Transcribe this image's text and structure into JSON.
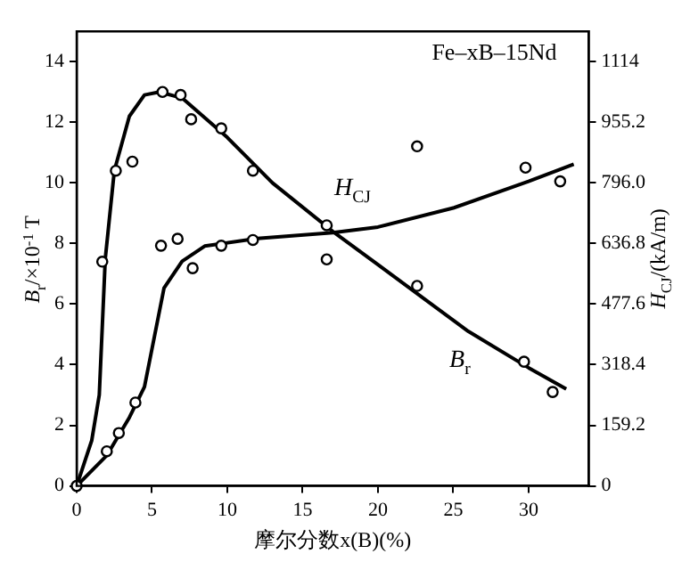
{
  "chart_data": {
    "type": "line",
    "title": "Fe–xB–15Nd",
    "xlabel": "摩尔分数x(B)(%)",
    "ylabel": "B$_{r}$/×10$^{-1}$ T",
    "y2label": "H$_{CJ}$/(kA/m)",
    "xlim": [
      0,
      34
    ],
    "xticks": [
      0,
      5,
      10,
      15,
      20,
      25,
      30
    ],
    "ylim": [
      0,
      15
    ],
    "yticks": [
      0,
      2,
      4,
      6,
      8,
      10,
      12,
      14
    ],
    "y2lim": [
      0,
      1194
    ],
    "y2ticks": [
      0,
      159.2,
      318.4,
      477.6,
      {
        "value": 636.8,
        "label": "636.8"
      },
      {
        "value": 796,
        "label": "796.0"
      },
      955.2,
      1114
    ],
    "grid": false,
    "legend": false,
    "series": [
      {
        "name": "B$_{r}$",
        "marker": "none",
        "color": "#000000",
        "x": [
          0,
          1,
          1.5,
          1.9,
          2.5,
          3.5,
          4.5,
          5.5,
          7,
          10,
          13,
          17,
          20,
          23,
          26,
          30,
          32.5
        ],
        "values": [
          0,
          1.5,
          3,
          7.5,
          10.4,
          12.2,
          12.9,
          13,
          12.8,
          11.5,
          10,
          8.4,
          7.3,
          6.2,
          5.1,
          3.9,
          3.2
        ]
      },
      {
        "type": "scatter",
        "marker": "circle",
        "color": "#000000",
        "x": [
          0,
          1.7,
          2.6,
          3.7,
          5.7,
          6.9,
          7.6,
          9.6,
          11.7,
          16.6,
          22.6,
          29.7,
          31.6
        ],
        "values": [
          0,
          7.4,
          10.4,
          10.7,
          13,
          12.9,
          12.1,
          11.8,
          10.4,
          8.6,
          6.6,
          4.1,
          3.1
        ]
      },
      {
        "name": "H$_{CJ}$",
        "marker": "none",
        "color": "#000000",
        "axis": "y2",
        "x": [
          0,
          2,
          3.5,
          4.5,
          5.2,
          5.8,
          7,
          8.5,
          12,
          17,
          20,
          25,
          30,
          33
        ],
        "values": [
          0,
          80,
          180,
          260,
          400,
          520,
          590,
          630,
          650,
          665,
          680,
          730,
          800,
          845
        ]
      },
      {
        "type": "scatter",
        "marker": "circle",
        "color": "#000000",
        "axis": "y2",
        "x": [
          2,
          2.8,
          3.9,
          5.6,
          6.7,
          7.7,
          9.6,
          11.7,
          16.6,
          22.6,
          29.8,
          32.1
        ],
        "values": [
          91,
          139,
          219,
          631,
          649,
          572,
          631,
          646,
          595,
          892,
          836,
          800
        ]
      }
    ]
  }
}
